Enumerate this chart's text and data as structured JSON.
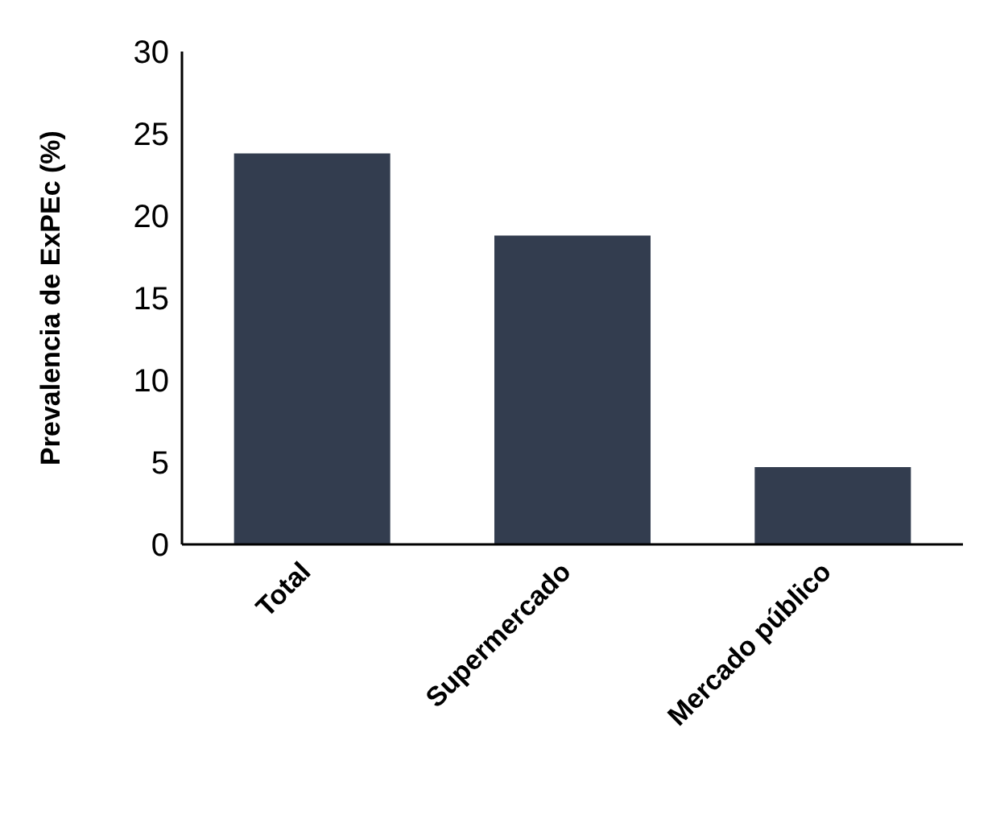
{
  "chart_data": {
    "type": "bar",
    "ylabel": "Prevalencia de ExPEc (%)",
    "categories": [
      "Total",
      "Supermercado",
      "Mercado público"
    ],
    "values": [
      23.8,
      18.8,
      4.7
    ],
    "color": "#333d4f",
    "ylim": [
      0,
      30
    ],
    "yticks": [
      0,
      5,
      10,
      15,
      20,
      25,
      30
    ],
    "grid": false,
    "legend": false
  }
}
